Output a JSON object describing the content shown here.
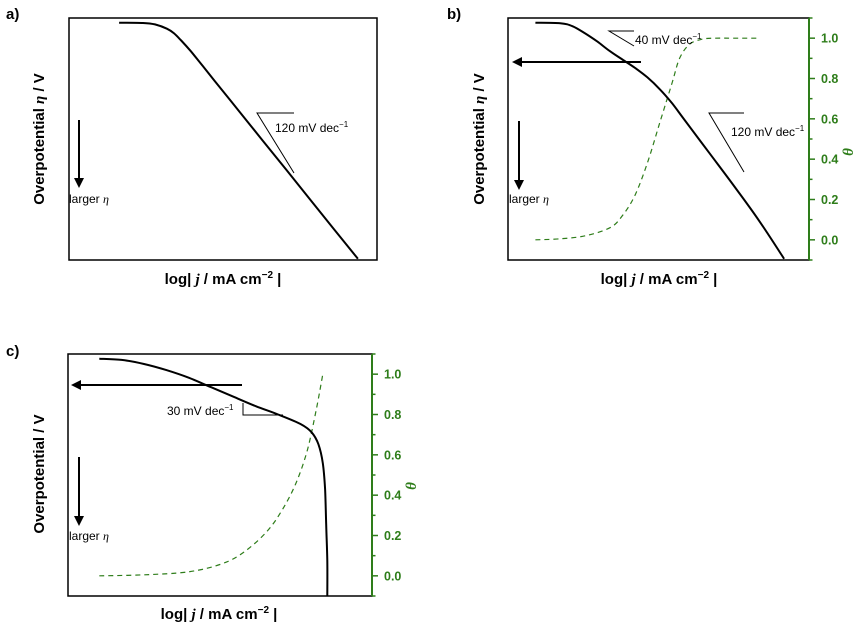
{
  "chart_data": [
    {
      "panel": "a)",
      "type": "line",
      "title": "",
      "xlabel_pre": "log| ",
      "xlabel_j": "j",
      "xlabel_post": " / mA cm",
      "xlabel_sup": "−2",
      "xlabel_end": " |",
      "ylabel_pre": "Overpotential ",
      "ylabel_eta": "η",
      "ylabel_post": " / V",
      "arrow_label_pre": "larger ",
      "arrow_label_eta": "η",
      "slope_labels": [
        {
          "text": "120 mV dec",
          "sup": "−1"
        }
      ],
      "series": [
        {
          "name": "overpotential",
          "color": "#000000",
          "style": "solid",
          "x": [
            0.0,
            0.1,
            0.15,
            0.2,
            0.23,
            0.26,
            0.3,
            0.35,
            0.4,
            0.5,
            0.6,
            0.7,
            0.8,
            0.9,
            1.0
          ],
          "y": [
            1.0,
            0.999,
            0.993,
            0.975,
            0.955,
            0.925,
            0.88,
            0.818,
            0.755,
            0.63,
            0.505,
            0.38,
            0.255,
            0.13,
            0.005
          ]
        }
      ],
      "xlim": [
        -0.21,
        1.08
      ],
      "ylim": [
        0,
        1.02
      ]
    },
    {
      "panel": "b)",
      "type": "line",
      "title": "",
      "xlabel_pre": "log| ",
      "xlabel_j": "j",
      "xlabel_post": " / mA cm",
      "xlabel_sup": "−2",
      "xlabel_end": " |",
      "ylabel_pre": "Overpotential ",
      "ylabel_eta": "η",
      "ylabel_post": " / V",
      "y2label": "θ",
      "y2ticks": [
        "0.0",
        "0.2",
        "0.4",
        "0.6",
        "0.8",
        "1.0"
      ],
      "y2lim": [
        -0.1,
        1.1
      ],
      "arrow_label_pre": "larger ",
      "arrow_label_eta": "η",
      "slope_labels": [
        {
          "text": "40 mV dec",
          "sup": "−1"
        },
        {
          "text": "120 mV dec",
          "sup": "−1"
        }
      ],
      "series": [
        {
          "name": "overpotential",
          "color": "#000000",
          "style": "solid",
          "x": [
            0.0,
            0.1,
            0.15,
            0.2,
            0.25,
            0.3,
            0.35,
            0.4,
            0.45,
            0.5,
            0.55,
            0.6,
            0.7,
            0.8,
            0.9,
            1.0
          ],
          "y": [
            1.0,
            0.998,
            0.985,
            0.955,
            0.92,
            0.88,
            0.845,
            0.81,
            0.77,
            0.72,
            0.66,
            0.59,
            0.45,
            0.31,
            0.165,
            0.005
          ]
        },
        {
          "name": "θ (coverage)",
          "color": "#2e7d1a",
          "style": "dashed",
          "axis": "right",
          "x": [
            0.0,
            0.1,
            0.2,
            0.3,
            0.35,
            0.4,
            0.45,
            0.5,
            0.55,
            0.58,
            0.62,
            0.67,
            0.72,
            0.8,
            0.9
          ],
          "y": [
            0.0,
            0.005,
            0.02,
            0.06,
            0.12,
            0.22,
            0.38,
            0.58,
            0.78,
            0.9,
            0.97,
            0.995,
            1.0,
            1.0,
            1.0
          ]
        }
      ],
      "xlim": [
        -0.11,
        1.1
      ],
      "ylim": [
        0,
        1.02
      ]
    },
    {
      "panel": "c)",
      "type": "line",
      "title": "",
      "xlabel_pre": "log| ",
      "xlabel_j": "j",
      "xlabel_post": " / mA cm",
      "xlabel_sup": "−2",
      "xlabel_end": " |",
      "ylabel_pre": "Overpotential / V",
      "y2label": "θ",
      "y2ticks": [
        "0.0",
        "0.2",
        "0.4",
        "0.6",
        "0.8",
        "1.0"
      ],
      "y2lim": [
        -0.1,
        1.1
      ],
      "arrow_label_pre": "larger ",
      "arrow_label_eta": "η",
      "slope_labels": [
        {
          "text": "30 mV dec",
          "sup": "−1"
        }
      ],
      "series": [
        {
          "name": "overpotential",
          "color": "#000000",
          "style": "solid",
          "x": [
            0.0,
            0.1,
            0.2,
            0.3,
            0.4,
            0.5,
            0.6,
            0.7,
            0.8,
            0.9,
            0.95,
            0.98,
            1.0,
            1.01,
            1.015,
            1.02,
            1.02
          ],
          "y": [
            1.0,
            0.995,
            0.978,
            0.952,
            0.92,
            0.88,
            0.84,
            0.8,
            0.765,
            0.725,
            0.69,
            0.64,
            0.56,
            0.45,
            0.3,
            0.15,
            0.0
          ]
        },
        {
          "name": "θ (coverage)",
          "color": "#2e7d1a",
          "style": "dashed",
          "axis": "right",
          "x": [
            0.0,
            0.2,
            0.4,
            0.55,
            0.65,
            0.75,
            0.82,
            0.88,
            0.93,
            0.97,
            1.0
          ],
          "y": [
            0.0,
            0.005,
            0.02,
            0.06,
            0.12,
            0.22,
            0.33,
            0.46,
            0.62,
            0.82,
            1.0
          ]
        }
      ],
      "xlim": [
        -0.14,
        1.22
      ],
      "ylim": [
        0,
        1.02
      ]
    }
  ]
}
